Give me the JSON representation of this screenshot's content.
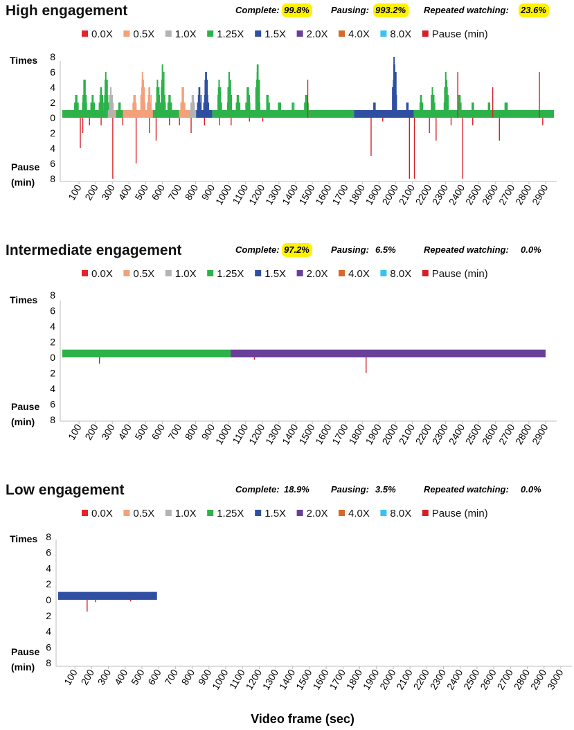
{
  "x_axis_label": "Video frame (sec)",
  "legend": [
    {
      "label": "0.0X",
      "color": "#e8222b"
    },
    {
      "label": "0.5X",
      "color": "#f4a07a"
    },
    {
      "label": "1.0X",
      "color": "#b3b3b3"
    },
    {
      "label": "1.25X",
      "color": "#2db24a"
    },
    {
      "label": "1.5X",
      "color": "#2f4fa2"
    },
    {
      "label": "2.0X",
      "color": "#6a3f99"
    },
    {
      "label": "4.0X",
      "color": "#d9672a"
    },
    {
      "label": "8.0X",
      "color": "#37c3ef"
    },
    {
      "label": "Pause (min)",
      "color": "#d62027"
    }
  ],
  "highlight_color": "#fff200",
  "chart_data": [
    {
      "type": "bar",
      "title": "High engagement",
      "stats": [
        {
          "label": "Complete:",
          "value": "99.8%",
          "highlight": true
        },
        {
          "label": "Pausing:",
          "value": "993.2%",
          "highlight": true
        },
        {
          "label": "Repeated watching:",
          "value": "23.6%",
          "highlight": true
        }
      ],
      "y_top_label": "Times",
      "y_bottom_label": [
        "Pause",
        "(min)"
      ],
      "ylim_top": [
        0,
        8
      ],
      "ylim_bottom": [
        0,
        8
      ],
      "y_ticks_top": [
        "8",
        "6",
        "4",
        "2",
        "0"
      ],
      "y_ticks_bottom": [
        "2",
        "4",
        "6",
        "8"
      ],
      "x_ticks": [
        "100",
        "200",
        "300",
        "400",
        "500",
        "600",
        "700",
        "800",
        "900",
        "1000",
        "1100",
        "1200",
        "1300",
        "1400",
        "1500",
        "1600",
        "1700",
        "1800",
        "1900",
        "2000",
        "2100",
        "2200",
        "2300",
        "2400",
        "2500",
        "2600",
        "2700",
        "2800",
        "2900"
      ],
      "xlim": [
        0,
        2950
      ],
      "watch_segments": [
        {
          "start": 0,
          "end": 220,
          "speed": "1.25X"
        },
        {
          "start": 220,
          "end": 270,
          "speed": "1.0X"
        },
        {
          "start": 270,
          "end": 540,
          "speed": "0.5X"
        },
        {
          "start": 540,
          "end": 700,
          "speed": "1.25X"
        },
        {
          "start": 700,
          "end": 790,
          "speed": "0.5X"
        },
        {
          "start": 790,
          "end": 830,
          "speed": "1.0X"
        },
        {
          "start": 830,
          "end": 900,
          "speed": "1.5X"
        },
        {
          "start": 900,
          "end": 1750,
          "speed": "1.25X"
        },
        {
          "start": 1750,
          "end": 2110,
          "speed": "1.5X"
        },
        {
          "start": 2110,
          "end": 2950,
          "speed": "1.25X"
        }
      ],
      "repeat_peaks": [
        {
          "x": 80,
          "v": 3,
          "speed": "1.25X"
        },
        {
          "x": 130,
          "v": 5,
          "speed": "1.25X"
        },
        {
          "x": 180,
          "v": 3,
          "speed": "1.25X"
        },
        {
          "x": 230,
          "v": 4,
          "speed": "1.25X"
        },
        {
          "x": 260,
          "v": 6,
          "speed": "1.25X"
        },
        {
          "x": 290,
          "v": 4,
          "speed": "1.0X"
        },
        {
          "x": 340,
          "v": 2,
          "speed": "1.25X"
        },
        {
          "x": 430,
          "v": 3,
          "speed": "0.5X"
        },
        {
          "x": 480,
          "v": 6,
          "speed": "0.5X"
        },
        {
          "x": 520,
          "v": 4,
          "speed": "0.5X"
        },
        {
          "x": 570,
          "v": 5,
          "speed": "1.25X"
        },
        {
          "x": 600,
          "v": 7,
          "speed": "1.25X"
        },
        {
          "x": 640,
          "v": 3,
          "speed": "1.25X"
        },
        {
          "x": 720,
          "v": 4,
          "speed": "0.5X"
        },
        {
          "x": 780,
          "v": 3,
          "speed": "1.0X"
        },
        {
          "x": 820,
          "v": 4,
          "speed": "1.5X"
        },
        {
          "x": 860,
          "v": 6,
          "speed": "1.5X"
        },
        {
          "x": 940,
          "v": 5,
          "speed": "1.25X"
        },
        {
          "x": 1000,
          "v": 6,
          "speed": "1.25X"
        },
        {
          "x": 1050,
          "v": 3,
          "speed": "1.25X"
        },
        {
          "x": 1110,
          "v": 4,
          "speed": "1.25X"
        },
        {
          "x": 1170,
          "v": 7,
          "speed": "1.25X"
        },
        {
          "x": 1230,
          "v": 3,
          "speed": "1.25X"
        },
        {
          "x": 1300,
          "v": 2,
          "speed": "1.25X"
        },
        {
          "x": 1380,
          "v": 2,
          "speed": "1.25X"
        },
        {
          "x": 1460,
          "v": 3,
          "speed": "1.25X"
        },
        {
          "x": 1870,
          "v": 2,
          "speed": "1.5X"
        },
        {
          "x": 1990,
          "v": 8,
          "speed": "1.5X"
        },
        {
          "x": 2070,
          "v": 2,
          "speed": "1.5X"
        },
        {
          "x": 2150,
          "v": 3,
          "speed": "1.25X"
        },
        {
          "x": 2220,
          "v": 4,
          "speed": "1.25X"
        },
        {
          "x": 2300,
          "v": 6,
          "speed": "1.25X"
        },
        {
          "x": 2380,
          "v": 3,
          "speed": "1.25X"
        },
        {
          "x": 2460,
          "v": 2,
          "speed": "1.25X"
        },
        {
          "x": 2560,
          "v": 2,
          "speed": "1.25X"
        },
        {
          "x": 2660,
          "v": 2,
          "speed": "1.25X"
        }
      ],
      "pauses": [
        {
          "x": 105,
          "v": 4
        },
        {
          "x": 120,
          "v": 2
        },
        {
          "x": 160,
          "v": 1
        },
        {
          "x": 230,
          "v": 1
        },
        {
          "x": 300,
          "v": 8
        },
        {
          "x": 360,
          "v": 1
        },
        {
          "x": 440,
          "v": 6
        },
        {
          "x": 520,
          "v": 2
        },
        {
          "x": 560,
          "v": 3
        },
        {
          "x": 640,
          "v": 1
        },
        {
          "x": 700,
          "v": 1
        },
        {
          "x": 770,
          "v": 2
        },
        {
          "x": 850,
          "v": 1
        },
        {
          "x": 940,
          "v": 1
        },
        {
          "x": 1010,
          "v": 1
        },
        {
          "x": 1120,
          "v": 0.5
        },
        {
          "x": 1200,
          "v": 0.5
        },
        {
          "x": 1850,
          "v": 5
        },
        {
          "x": 1920,
          "v": 0.5
        },
        {
          "x": 2080,
          "v": 8
        },
        {
          "x": 2110,
          "v": 8
        },
        {
          "x": 2200,
          "v": 2
        },
        {
          "x": 2240,
          "v": 3
        },
        {
          "x": 2330,
          "v": 1
        },
        {
          "x": 2400,
          "v": 8
        },
        {
          "x": 2460,
          "v": 1
        },
        {
          "x": 2620,
          "v": 3
        },
        {
          "x": 2880,
          "v": 1
        }
      ],
      "pause_ups": [
        {
          "x": 1470,
          "v": 5
        },
        {
          "x": 2370,
          "v": 6
        },
        {
          "x": 2580,
          "v": 4
        },
        {
          "x": 2860,
          "v": 6
        }
      ]
    },
    {
      "type": "bar",
      "title": "Intermediate engagement",
      "stats": [
        {
          "label": "Complete:",
          "value": "97.2%",
          "highlight": true
        },
        {
          "label": "Pausing:",
          "value": "6.5%",
          "highlight": false
        },
        {
          "label": "Repeated watching:",
          "value": "0.0%",
          "highlight": false
        }
      ],
      "y_top_label": "Times",
      "y_bottom_label": [
        "Pause",
        "(min)"
      ],
      "ylim_top": [
        0,
        8
      ],
      "ylim_bottom": [
        0,
        8
      ],
      "y_ticks_top": [
        "8",
        "6",
        "4",
        "2",
        "0"
      ],
      "y_ticks_bottom": [
        "2",
        "4",
        "6",
        "8"
      ],
      "x_ticks": [
        "100",
        "200",
        "300",
        "400",
        "500",
        "600",
        "700",
        "800",
        "900",
        "1000",
        "1100",
        "1200",
        "1300",
        "1400",
        "1500",
        "1600",
        "1700",
        "1800",
        "1900",
        "2000",
        "2100",
        "2200",
        "2300",
        "2400",
        "2500",
        "2600",
        "2700",
        "2800",
        "2900"
      ],
      "xlim": [
        0,
        2950
      ],
      "watch_segments": [
        {
          "start": 0,
          "end": 1010,
          "speed": "1.25X"
        },
        {
          "start": 1010,
          "end": 2900,
          "speed": "2.0X"
        }
      ],
      "repeat_peaks": [],
      "pauses": [
        {
          "x": 220,
          "v": 0.8
        },
        {
          "x": 1150,
          "v": 0.3
        },
        {
          "x": 1820,
          "v": 2
        }
      ],
      "pause_ups": []
    },
    {
      "type": "bar",
      "title": "Low engagement",
      "stats": [
        {
          "label": "Complete:",
          "value": "18.9%",
          "highlight": false
        },
        {
          "label": "Pausing:",
          "value": "3.5%",
          "highlight": false
        },
        {
          "label": "Repeated watching:",
          "value": "0.0%",
          "highlight": false
        }
      ],
      "y_top_label": "Times",
      "y_bottom_label": [
        "Pause",
        "(min)"
      ],
      "ylim_top": [
        0,
        8
      ],
      "ylim_bottom": [
        0,
        8
      ],
      "y_ticks_top": [
        "8",
        "6",
        "4",
        "2",
        "0"
      ],
      "y_ticks_bottom": [
        "2",
        "4",
        "6",
        "8"
      ],
      "x_ticks": [
        "100",
        "200",
        "300",
        "400",
        "500",
        "600",
        "700",
        "800",
        "900",
        "1000",
        "1100",
        "1200",
        "1300",
        "1400",
        "1500",
        "1600",
        "1700",
        "1800",
        "1900",
        "2000",
        "2100",
        "2200",
        "2300",
        "2400",
        "2500",
        "2600",
        "2700",
        "2800",
        "2900",
        "3000"
      ],
      "xlim": [
        0,
        3050
      ],
      "watch_segments": [
        {
          "start": 0,
          "end": 590,
          "speed": "1.5X"
        }
      ],
      "repeat_peaks": [],
      "pauses": [
        {
          "x": 170,
          "v": 1.5
        },
        {
          "x": 220,
          "v": 0.3
        },
        {
          "x": 430,
          "v": 0.2
        }
      ],
      "pause_ups": []
    }
  ]
}
